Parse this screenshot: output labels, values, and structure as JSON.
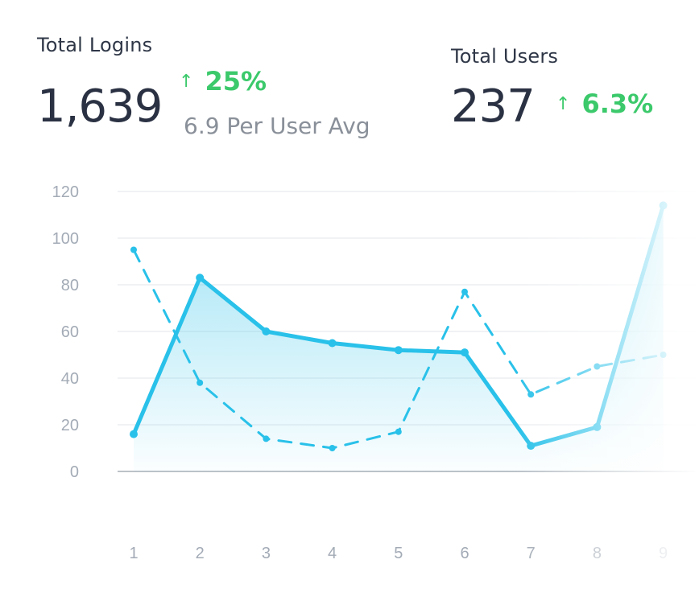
{
  "stats": {
    "logins": {
      "title": "Total Logins",
      "value": "1,639",
      "delta": "25%",
      "delta_arrow": "↑",
      "subtitle": "6.9 Per User Avg"
    },
    "users": {
      "title": "Total Users",
      "value": "237",
      "delta": "6.3%",
      "delta_arrow": "↑"
    }
  },
  "colors": {
    "accent": "#29c1e9",
    "positive": "#3bc96b",
    "grid": "#e3e6ea",
    "axis": "#a6adb6",
    "text": "#2a3142",
    "muted": "#8a9099"
  },
  "chart_data": {
    "type": "line",
    "x": [
      1,
      2,
      3,
      4,
      5,
      6,
      7,
      8,
      9
    ],
    "ylim": [
      0,
      120
    ],
    "yticks": [
      0,
      20,
      40,
      60,
      80,
      100,
      120
    ],
    "grid": true,
    "series": [
      {
        "style": "solid",
        "filled": true,
        "values": [
          16,
          83,
          60,
          55,
          52,
          51,
          11,
          19,
          114
        ]
      },
      {
        "style": "dashed",
        "filled": false,
        "values": [
          95,
          38,
          14,
          10,
          17,
          77,
          33,
          45,
          50
        ]
      }
    ],
    "fade_right": true
  }
}
